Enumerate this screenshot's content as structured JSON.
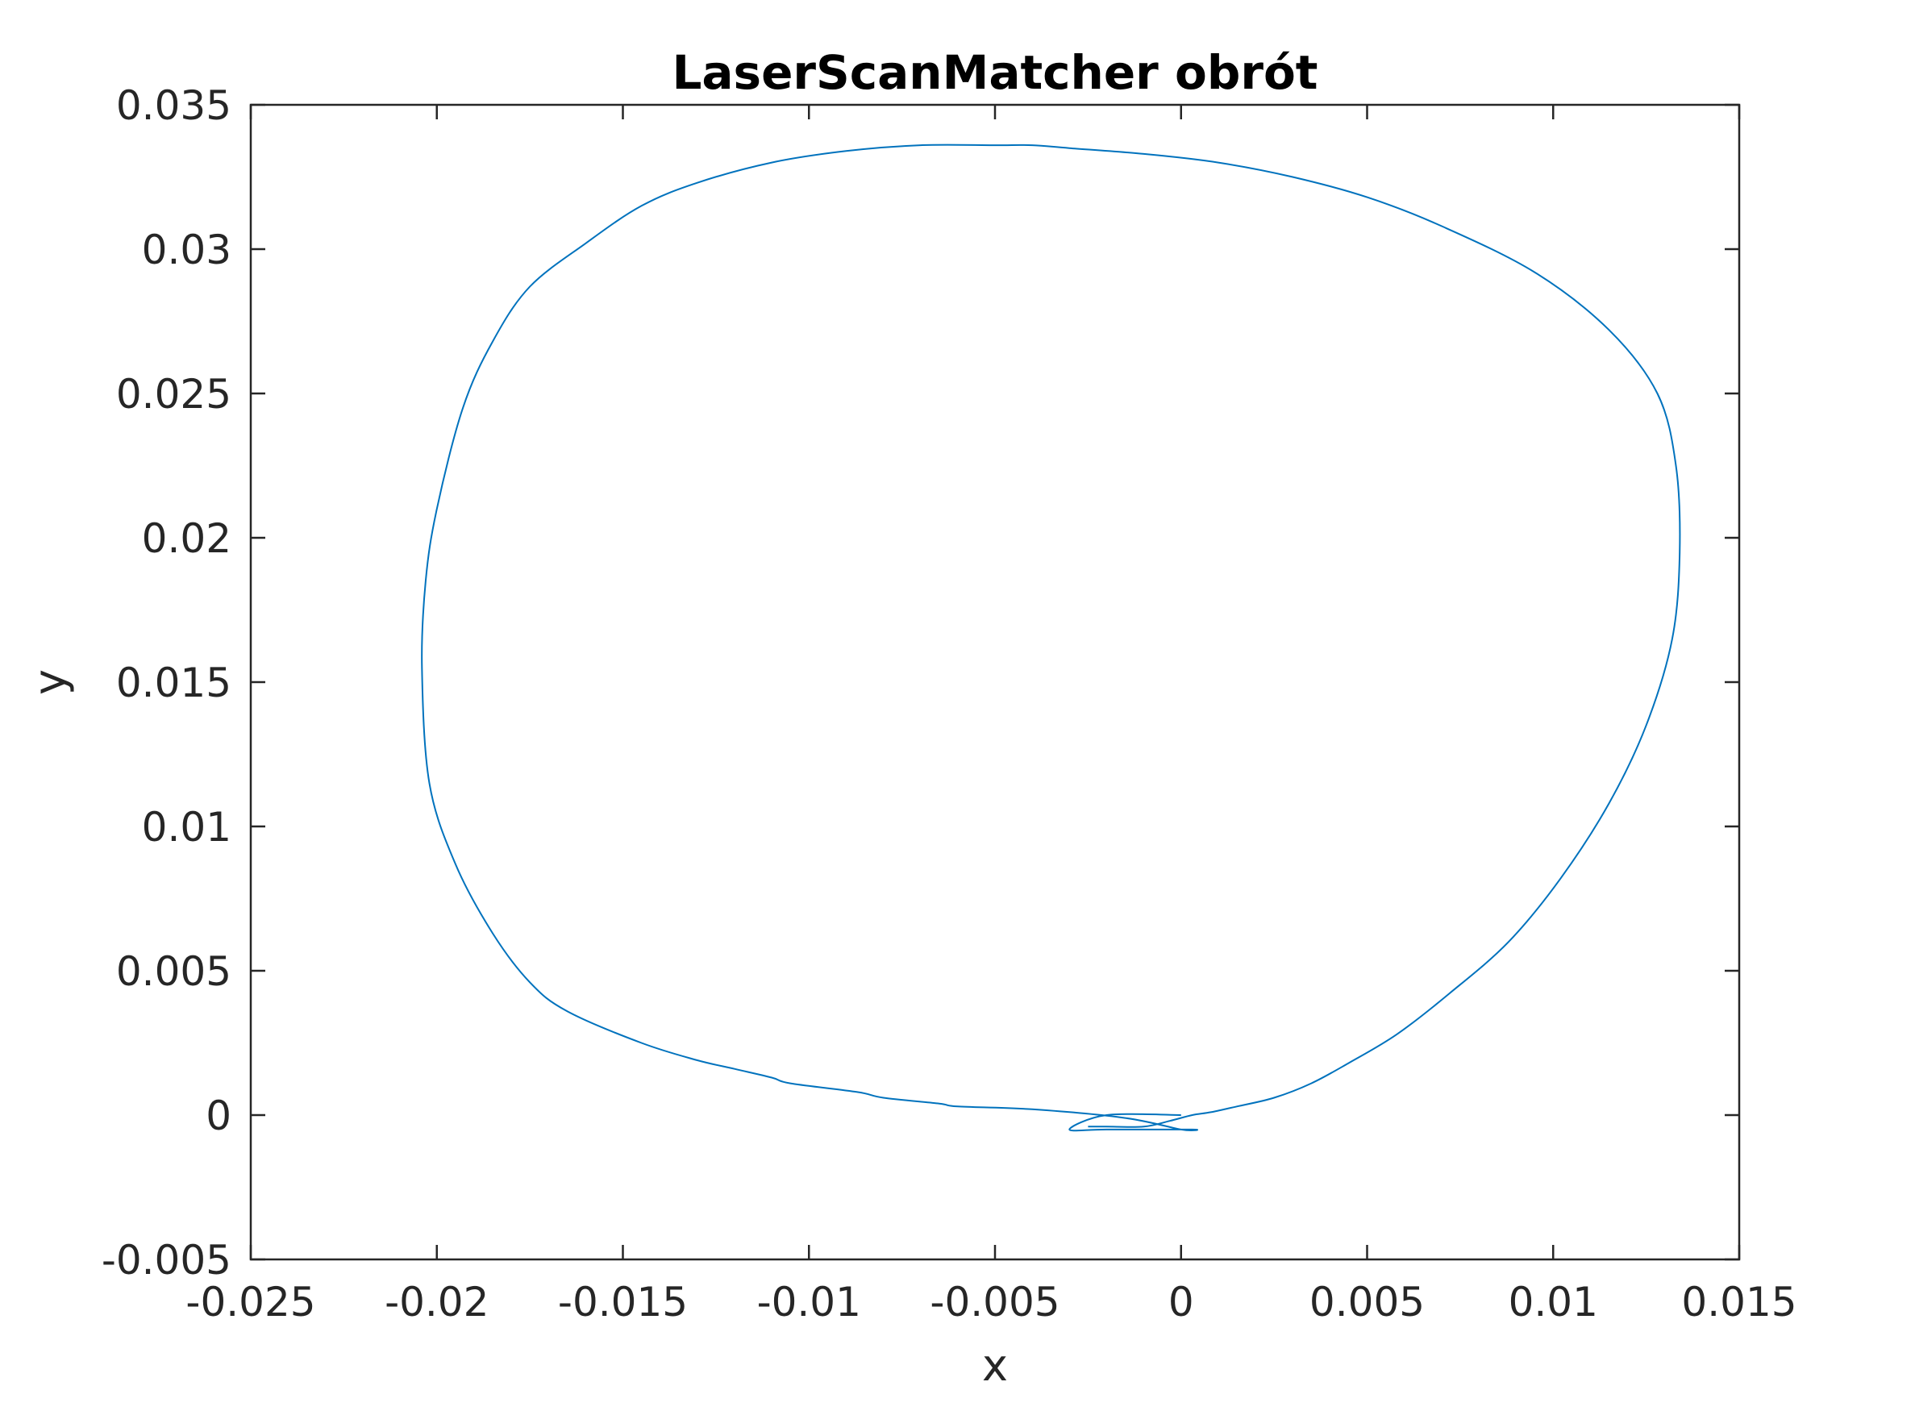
{
  "chart_data": {
    "type": "line",
    "title": "LaserScanMatcher obrót",
    "xlabel": "x",
    "ylabel": "y",
    "xlim": [
      -0.025,
      0.015
    ],
    "ylim": [
      -0.005,
      0.035
    ],
    "grid": false,
    "box": true,
    "xticks": [
      {
        "value": -0.025,
        "label": "-0.025"
      },
      {
        "value": -0.02,
        "label": "-0.02"
      },
      {
        "value": -0.015,
        "label": "-0.015"
      },
      {
        "value": -0.01,
        "label": "-0.01"
      },
      {
        "value": -0.005,
        "label": "-0.005"
      },
      {
        "value": 0,
        "label": "0"
      },
      {
        "value": 0.005,
        "label": "0.005"
      },
      {
        "value": 0.01,
        "label": "0.01"
      },
      {
        "value": 0.015,
        "label": "0.015"
      }
    ],
    "yticks": [
      {
        "value": -0.005,
        "label": "-0.005"
      },
      {
        "value": 0,
        "label": "0"
      },
      {
        "value": 0.005,
        "label": "0.005"
      },
      {
        "value": 0.01,
        "label": "0.01"
      },
      {
        "value": 0.015,
        "label": "0.015"
      },
      {
        "value": 0.02,
        "label": "0.02"
      },
      {
        "value": 0.025,
        "label": "0.025"
      },
      {
        "value": 0.03,
        "label": "0.03"
      },
      {
        "value": 0.035,
        "label": "0.035"
      }
    ],
    "colors": {
      "series": "#0072BD",
      "axes": "#262626",
      "title": "#000000"
    },
    "series": [
      {
        "x": [
          0,
          -0.002,
          -0.003,
          -0.002,
          0.0003,
          0,
          -0.0015,
          -0.004,
          -0.006,
          -0.0065,
          -0.008,
          -0.0087,
          -0.0105,
          -0.011,
          -0.012,
          -0.013,
          -0.0145,
          -0.0165,
          -0.0175,
          -0.0185,
          -0.0195,
          -0.0202,
          -0.0204,
          -0.0203,
          -0.02,
          -0.0193,
          -0.0185,
          -0.0175,
          -0.016,
          -0.0145,
          -0.013,
          -0.011,
          -0.009,
          -0.007,
          -0.005,
          -0.004,
          -0.003,
          -0.001,
          0.001,
          0.003,
          0.005,
          0.007,
          0.0095,
          0.0115,
          0.0128,
          0.0133,
          0.0134,
          0.0132,
          0.0125,
          0.0115,
          0.0102,
          0.0088,
          0.0072,
          0.0058,
          0.0045,
          0.0035,
          0.0025,
          0.0015,
          0.0008,
          0.0003,
          -0.0003,
          -0.001,
          -0.002,
          -0.0025
        ],
        "y": [
          0,
          0,
          -0.0005,
          -0.0005,
          -0.0005,
          -0.0005,
          -0.0001,
          0.0002,
          0.0003,
          0.0004,
          0.0006,
          0.0008,
          0.0011,
          0.0013,
          0.0016,
          0.0019,
          0.0025,
          0.0036,
          0.0046,
          0.0063,
          0.0087,
          0.0115,
          0.0155,
          0.0185,
          0.021,
          0.0245,
          0.0268,
          0.0287,
          0.0302,
          0.0315,
          0.0323,
          0.033,
          0.0334,
          0.0336,
          0.0336,
          0.0336,
          0.0335,
          0.0333,
          0.033,
          0.0325,
          0.0318,
          0.0308,
          0.0292,
          0.0272,
          0.025,
          0.0225,
          0.0195,
          0.0165,
          0.0135,
          0.0108,
          0.0082,
          0.006,
          0.0042,
          0.0028,
          0.0018,
          0.0011,
          0.0006,
          0.0003,
          0.0001,
          0,
          -0.0002,
          -0.0004,
          -0.0004,
          -0.0004
        ]
      }
    ]
  }
}
